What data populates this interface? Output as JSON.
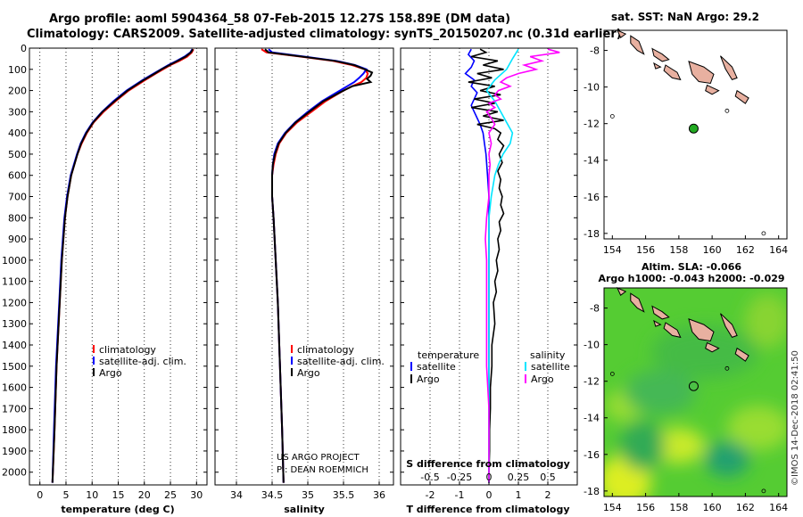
{
  "title": {
    "line1": "Argo profile: aoml 5904364_58 07-Feb-2015 12.27S 158.89E (DM data)",
    "line2": "Climatology: CARS2009. Satellite-adjusted climatology: synTS_20150207.nc (0.31d earlier)"
  },
  "colors": {
    "climatology": "#ff0000",
    "satellite": "#0000ff",
    "argo": "#000000",
    "sat_salinity": "#00e5ff",
    "argo_salinity": "#ff00ff",
    "marker": "#22aa22"
  },
  "depth_ticks": [
    "0",
    "100",
    "200",
    "300",
    "400",
    "500",
    "600",
    "700",
    "800",
    "900",
    "1000",
    "1100",
    "1200",
    "1300",
    "1400",
    "1500",
    "1600",
    "1700",
    "1800",
    "1900",
    "2000"
  ],
  "chart_data": [
    {
      "type": "line",
      "id": "temperature",
      "xlabel": "temperature (deg C)",
      "xlim": [
        -2,
        32
      ],
      "ylim": [
        0,
        2060
      ],
      "xticks": [
        0,
        5,
        10,
        15,
        20,
        25,
        30
      ],
      "xtick_labels": [
        "0",
        "5",
        "10",
        "15",
        "20",
        "25",
        "30"
      ],
      "legend": [
        "climatology",
        "satellite-adj. clim.",
        "Argo"
      ],
      "series": [
        {
          "name": "climatology",
          "depth": [
            5,
            20,
            40,
            60,
            80,
            100,
            120,
            150,
            200,
            250,
            300,
            350,
            400,
            450,
            500,
            600,
            700,
            800,
            1000,
            1200,
            1500,
            1800,
            2050
          ],
          "values": [
            29.4,
            29.1,
            28.2,
            26.7,
            25.0,
            23.6,
            22.2,
            20.2,
            17.0,
            14.5,
            12.2,
            10.3,
            9.0,
            8.0,
            7.2,
            6.0,
            5.3,
            4.8,
            4.2,
            3.8,
            3.2,
            2.8,
            2.4
          ]
        },
        {
          "name": "satellite-adj. clim.",
          "depth": [
            5,
            20,
            40,
            60,
            80,
            100,
            120,
            150,
            200,
            250,
            300,
            350,
            400,
            450,
            500,
            600,
            700,
            800,
            1000,
            1200,
            1500,
            1800,
            2050
          ],
          "values": [
            29.2,
            28.8,
            27.7,
            26.2,
            24.6,
            23.2,
            21.8,
            19.7,
            16.6,
            14.1,
            11.9,
            10.1,
            8.8,
            7.8,
            7.1,
            5.9,
            5.2,
            4.7,
            4.1,
            3.7,
            3.1,
            2.7,
            2.4
          ]
        },
        {
          "name": "Argo",
          "depth": [
            5,
            20,
            40,
            60,
            80,
            100,
            120,
            150,
            200,
            250,
            300,
            350,
            400,
            450,
            500,
            600,
            700,
            800,
            1000,
            1200,
            1500,
            1800,
            2050
          ],
          "values": [
            29.3,
            28.9,
            27.9,
            26.4,
            24.8,
            23.3,
            22.0,
            19.9,
            16.8,
            14.3,
            12.0,
            10.2,
            8.9,
            7.9,
            7.2,
            6.0,
            5.3,
            4.8,
            4.2,
            3.8,
            3.2,
            2.8,
            2.4
          ]
        }
      ]
    },
    {
      "type": "line",
      "id": "salinity",
      "xlabel": "salinity",
      "xlim": [
        33.7,
        36.2
      ],
      "ylim": [
        0,
        2060
      ],
      "xticks": [
        34,
        34.5,
        35,
        35.5,
        36
      ],
      "xtick_labels": [
        "34",
        "34.5",
        "35",
        "35.5",
        "36"
      ],
      "legend": [
        "climatology",
        "satellite-adj. clim.",
        "Argo"
      ],
      "series": [
        {
          "name": "climatology",
          "depth": [
            5,
            20,
            40,
            60,
            80,
            100,
            120,
            140,
            160,
            180,
            200,
            250,
            300,
            350,
            400,
            450,
            500,
            550,
            600,
            700,
            800,
            1000,
            1200,
            1500,
            1800,
            2050
          ],
          "values": [
            34.35,
            34.42,
            34.9,
            35.35,
            35.62,
            35.8,
            35.84,
            35.82,
            35.75,
            35.62,
            35.5,
            35.25,
            35.05,
            34.85,
            34.7,
            34.6,
            34.55,
            34.52,
            34.5,
            34.5,
            34.52,
            34.55,
            34.58,
            34.61,
            34.64,
            34.66
          ]
        },
        {
          "name": "satellite-adj. clim.",
          "depth": [
            5,
            20,
            40,
            60,
            80,
            100,
            120,
            140,
            160,
            180,
            200,
            250,
            300,
            350,
            400,
            450,
            500,
            550,
            600,
            700,
            800,
            1000,
            1200,
            1500,
            1800,
            2050
          ],
          "values": [
            34.45,
            34.5,
            34.95,
            35.4,
            35.66,
            35.82,
            35.78,
            35.72,
            35.65,
            35.55,
            35.45,
            35.2,
            35.0,
            34.82,
            34.68,
            34.58,
            34.53,
            34.51,
            34.5,
            34.5,
            34.52,
            34.55,
            34.58,
            34.61,
            34.64,
            34.66
          ]
        },
        {
          "name": "Argo",
          "depth": [
            5,
            20,
            40,
            60,
            80,
            100,
            115,
            130,
            145,
            160,
            180,
            200,
            250,
            300,
            350,
            400,
            450,
            500,
            550,
            600,
            700,
            800,
            1000,
            1200,
            1500,
            1800,
            2050
          ],
          "values": [
            34.4,
            34.45,
            34.92,
            35.38,
            35.65,
            35.8,
            35.9,
            35.88,
            35.83,
            35.88,
            35.62,
            35.5,
            35.22,
            35.02,
            34.83,
            34.69,
            34.59,
            34.54,
            34.51,
            34.5,
            34.5,
            34.52,
            34.55,
            34.58,
            34.61,
            34.64,
            34.66
          ]
        }
      ]
    },
    {
      "type": "line",
      "id": "difference",
      "xlabel": "T difference from climatology",
      "xlabel2": "S difference from climatology",
      "xlim": [
        -3,
        3
      ],
      "ylim": [
        0,
        2060
      ],
      "xticks": [
        -2,
        -1,
        0,
        1,
        2
      ],
      "xtick_labels": [
        "-2",
        "-1",
        "0",
        "1",
        "2"
      ],
      "s_xticks": [
        -0.5,
        -0.25,
        0,
        0.25,
        0.5
      ],
      "s_xtick_labels": [
        "-0.5",
        "-0.25",
        "0",
        "0.25",
        "0.5"
      ],
      "legend_left_title": "temperature",
      "legend_right_title": "salinity",
      "legend": [
        "satellite",
        "Argo",
        "satellite",
        "Argo"
      ],
      "series": [
        {
          "name": "temperature satellite",
          "depth": [
            5,
            30,
            60,
            90,
            120,
            150,
            180,
            210,
            240,
            270,
            300,
            330,
            360,
            400,
            450,
            500,
            600,
            700,
            800,
            1000,
            1200,
            1500,
            1800,
            2050
          ],
          "values": [
            -0.6,
            -0.7,
            -0.5,
            -0.6,
            -0.8,
            -0.5,
            -0.6,
            -0.4,
            -0.5,
            -0.6,
            -0.5,
            -0.4,
            -0.3,
            -0.2,
            -0.15,
            -0.1,
            -0.05,
            0,
            0,
            0,
            0,
            0,
            0,
            0
          ]
        },
        {
          "name": "temperature Argo",
          "depth": [
            5,
            20,
            40,
            60,
            80,
            100,
            120,
            140,
            160,
            180,
            200,
            220,
            240,
            260,
            280,
            300,
            320,
            340,
            360,
            380,
            400,
            430,
            460,
            500,
            540,
            580,
            620,
            660,
            700,
            740,
            780,
            820,
            860,
            900,
            950,
            1000,
            1050,
            1100,
            1150,
            1200,
            1300,
            1400,
            1500,
            1600,
            1700,
            1800,
            1900,
            2000,
            2050
          ],
          "values": [
            -0.3,
            -0.1,
            -0.6,
            0.3,
            -0.2,
            0.5,
            -0.4,
            0.1,
            -0.7,
            0.2,
            -0.3,
            0.4,
            -0.5,
            0.2,
            -0.6,
            0.3,
            -0.2,
            0.5,
            -0.4,
            0.2,
            0.4,
            0.3,
            0.5,
            0.35,
            0.45,
            0.3,
            0.4,
            0.35,
            0.45,
            0.4,
            0.5,
            0.35,
            0.4,
            0.3,
            0.35,
            0.25,
            0.3,
            0.2,
            0.25,
            0.15,
            0.2,
            0.1,
            0.1,
            0.05,
            0.05,
            0.02,
            0.02,
            0,
            0
          ]
        },
        {
          "name": "salinity satellite",
          "depth": [
            5,
            50,
            100,
            150,
            200,
            250,
            300,
            350,
            400,
            450,
            500,
            550,
            600,
            700,
            800,
            1000,
            1200,
            1500,
            1800,
            2050
          ],
          "values": [
            0.25,
            0.2,
            0.15,
            0.05,
            -0.02,
            0.05,
            0.1,
            0.15,
            0.2,
            0.18,
            0.12,
            0.08,
            0.05,
            0.02,
            0.0,
            0.0,
            0.0,
            0.0,
            0.0,
            0.0
          ]
        },
        {
          "name": "salinity Argo",
          "depth": [
            5,
            20,
            40,
            60,
            80,
            100,
            120,
            140,
            160,
            180,
            200,
            220,
            240,
            260,
            280,
            300,
            330,
            360,
            400,
            450,
            500,
            550,
            600,
            700,
            800,
            900,
            1000,
            1100,
            1200,
            1300,
            1400,
            1500,
            1600,
            1700,
            1800,
            1900,
            2050
          ],
          "values": [
            0.5,
            0.6,
            0.35,
            0.45,
            0.3,
            0.4,
            0.25,
            0.15,
            0.1,
            0.18,
            0.08,
            0.05,
            0.1,
            0.0,
            0.05,
            -0.02,
            0.02,
            0.05,
            0.0,
            0.02,
            0.0,
            0.01,
            0.0,
            0.0,
            -0.02,
            -0.03,
            -0.02,
            -0.02,
            -0.02,
            -0.02,
            -0.02,
            -0.02,
            -0.01,
            0.0,
            0.0,
            0.0,
            0.0
          ]
        }
      ]
    },
    {
      "type": "scatter",
      "id": "sst-map",
      "title": "sat. SST: NaN Argo: 29.2",
      "xlim": [
        153.5,
        164.5
      ],
      "ylim": [
        -18.3,
        -6.9
      ],
      "xticks": [
        154,
        156,
        158,
        160,
        162,
        164
      ],
      "xtick_labels": [
        "154",
        "156",
        "158",
        "160",
        "162",
        "164"
      ],
      "yticks": [
        -8,
        -10,
        -12,
        -14,
        -16,
        -18
      ],
      "ytick_labels": [
        "-8",
        "-10",
        "-12",
        "-14",
        "-16",
        "-18"
      ],
      "points": [
        {
          "lon": 158.89,
          "lat": -12.27,
          "label": "Argo"
        }
      ]
    },
    {
      "type": "heatmap",
      "id": "sla-map",
      "title": "Altim. SLA: -0.066",
      "subtitle": "Argo h1000: -0.043 h2000: -0.029",
      "xlim": [
        153.5,
        164.5
      ],
      "ylim": [
        -18.3,
        -6.9
      ],
      "xticks": [
        154,
        156,
        158,
        160,
        162,
        164
      ],
      "xtick_labels": [
        "154",
        "156",
        "158",
        "160",
        "162",
        "164"
      ],
      "yticks": [
        -8,
        -10,
        -12,
        -14,
        -16,
        -18
      ],
      "ytick_labels": [
        "-8",
        "-10",
        "-12",
        "-14",
        "-16",
        "-18"
      ],
      "points": [
        {
          "lon": 158.89,
          "lat": -12.27,
          "label": "Argo"
        }
      ]
    }
  ],
  "credits": {
    "project": "US ARGO PROJECT",
    "pi": "PI: DEAN ROEMMICH",
    "imos": "©IMOS 14-Dec-2018 02:41:50"
  }
}
